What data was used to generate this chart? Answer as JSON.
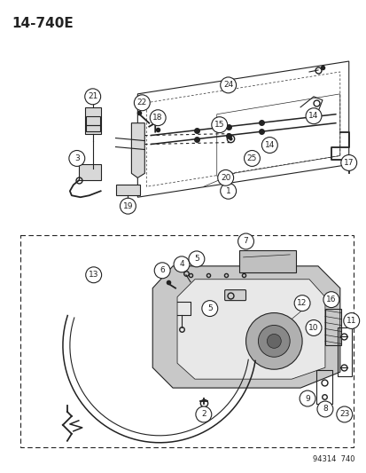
{
  "title": "14-740E",
  "bg": "#ffffff",
  "lc": "#222222",
  "watermark": "94314  740",
  "fig_w": 4.14,
  "fig_h": 5.33
}
